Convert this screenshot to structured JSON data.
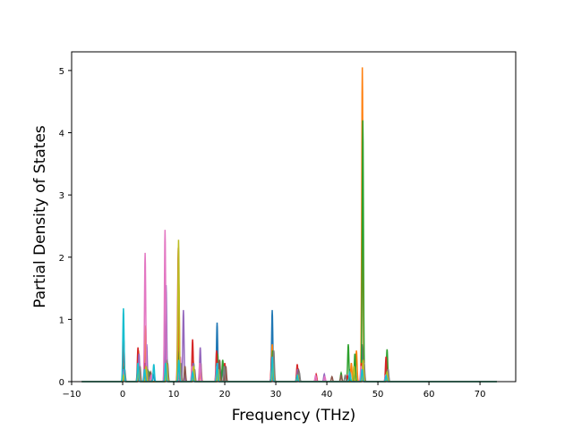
{
  "chart_data": {
    "type": "line",
    "title": "",
    "xlabel": "Frequency (THz)",
    "ylabel": "Partial Density of States",
    "xlim": [
      -10,
      77
    ],
    "ylim": [
      0,
      5.3
    ],
    "x_ticks": [
      -10,
      0,
      10,
      20,
      30,
      40,
      50,
      60,
      70
    ],
    "y_ticks": [
      0,
      1,
      2,
      3,
      4,
      5
    ],
    "x_tick_labels": [
      "−10",
      "0",
      "10",
      "20",
      "30",
      "40",
      "50",
      "60",
      "70"
    ],
    "y_tick_labels": [
      "0",
      "1",
      "2",
      "3",
      "4",
      "5"
    ],
    "grid": false,
    "legend": "none",
    "x_range": [
      -8,
      73.3
    ],
    "sigma": 0.12,
    "series": [
      {
        "color": "#1f77b4",
        "peaks": [
          [
            0.2,
            0.5
          ],
          [
            3.1,
            0.4
          ],
          [
            4.5,
            0.3
          ],
          [
            6.0,
            0.12
          ],
          [
            8.5,
            0.8
          ],
          [
            11.0,
            0.6
          ],
          [
            13.8,
            0.2
          ],
          [
            18.5,
            0.95
          ],
          [
            19.5,
            0.2
          ],
          [
            29.3,
            1.15
          ],
          [
            34.3,
            0.1
          ],
          [
            44.5,
            0.2
          ],
          [
            46.9,
            0.6
          ],
          [
            51.7,
            0.15
          ]
        ]
      },
      {
        "color": "#ff7f0e",
        "peaks": [
          [
            0.2,
            0.3
          ],
          [
            3.1,
            0.5
          ],
          [
            4.5,
            0.9
          ],
          [
            8.5,
            0.6
          ],
          [
            11.0,
            1.6
          ],
          [
            13.8,
            0.35
          ],
          [
            15.3,
            0.3
          ],
          [
            18.5,
            0.4
          ],
          [
            29.3,
            0.6
          ],
          [
            34.3,
            0.15
          ],
          [
            44.8,
            0.3
          ],
          [
            45.8,
            0.5
          ],
          [
            46.95,
            5.05
          ],
          [
            51.7,
            0.3
          ]
        ]
      },
      {
        "color": "#2ca02c",
        "peaks": [
          [
            0.3,
            0.25
          ],
          [
            3.2,
            0.3
          ],
          [
            5.2,
            0.15
          ],
          [
            8.6,
            0.4
          ],
          [
            11.1,
            0.5
          ],
          [
            13.9,
            0.3
          ],
          [
            18.6,
            0.45
          ],
          [
            19.6,
            0.35
          ],
          [
            29.4,
            0.5
          ],
          [
            34.4,
            0.2
          ],
          [
            42.8,
            0.14
          ],
          [
            44.2,
            0.6
          ],
          [
            45.5,
            0.45
          ],
          [
            47.05,
            4.2
          ],
          [
            51.8,
            0.52
          ]
        ]
      },
      {
        "color": "#d62728",
        "peaks": [
          [
            0.2,
            0.7
          ],
          [
            3.0,
            0.55
          ],
          [
            4.4,
            0.3
          ],
          [
            8.4,
            0.35
          ],
          [
            10.9,
            2.15
          ],
          [
            13.7,
            0.68
          ],
          [
            18.4,
            0.5
          ],
          [
            20.0,
            0.3
          ],
          [
            29.2,
            0.4
          ],
          [
            34.2,
            0.28
          ],
          [
            37.9,
            0.12
          ],
          [
            44.0,
            0.1
          ],
          [
            46.8,
            0.3
          ],
          [
            51.6,
            0.4
          ]
        ]
      },
      {
        "color": "#9467bd",
        "peaks": [
          [
            0.1,
            0.2
          ],
          [
            3.2,
            0.45
          ],
          [
            4.7,
            0.6
          ],
          [
            8.5,
            1.55
          ],
          [
            11.9,
            1.15
          ],
          [
            13.8,
            0.3
          ],
          [
            15.2,
            0.55
          ],
          [
            18.6,
            0.3
          ],
          [
            29.3,
            0.3
          ],
          [
            34.3,
            0.2
          ],
          [
            39.5,
            0.12
          ],
          [
            46.9,
            0.2
          ]
        ]
      },
      {
        "color": "#8c564b",
        "peaks": [
          [
            0.3,
            0.15
          ],
          [
            3.3,
            0.2
          ],
          [
            5.5,
            0.15
          ],
          [
            8.8,
            0.3
          ],
          [
            12.2,
            0.25
          ],
          [
            14.0,
            0.2
          ],
          [
            19.0,
            0.35
          ],
          [
            20.2,
            0.25
          ],
          [
            29.5,
            0.3
          ],
          [
            34.5,
            0.18
          ],
          [
            41.0,
            0.08
          ],
          [
            42.8,
            0.1
          ],
          [
            47.2,
            0.35
          ],
          [
            51.9,
            0.15
          ]
        ]
      },
      {
        "color": "#e377c2",
        "peaks": [
          [
            0.2,
            0.15
          ],
          [
            3.1,
            0.3
          ],
          [
            4.4,
            2.07
          ],
          [
            5.6,
            0.1
          ],
          [
            8.3,
            2.44
          ],
          [
            11.3,
            0.4
          ],
          [
            13.6,
            0.25
          ],
          [
            15.1,
            0.3
          ],
          [
            18.4,
            0.25
          ],
          [
            29.2,
            0.2
          ],
          [
            37.8,
            0.1
          ],
          [
            39.6,
            0.08
          ],
          [
            46.7,
            0.25
          ],
          [
            51.5,
            0.1
          ]
        ]
      },
      {
        "color": "#7f7f7f",
        "peaks": [
          [
            0.4,
            0.2
          ],
          [
            3.4,
            0.25
          ],
          [
            4.9,
            0.2
          ],
          [
            8.7,
            0.35
          ],
          [
            11.4,
            0.3
          ],
          [
            14.1,
            0.2
          ],
          [
            18.8,
            0.2
          ],
          [
            19.9,
            0.25
          ],
          [
            29.6,
            0.5
          ],
          [
            34.6,
            0.15
          ],
          [
            43.6,
            0.1
          ],
          [
            47.3,
            0.3
          ],
          [
            52.0,
            0.2
          ]
        ]
      },
      {
        "color": "#bcbd22",
        "peaks": [
          [
            0.2,
            0.1
          ],
          [
            3.1,
            0.2
          ],
          [
            4.6,
            0.25
          ],
          [
            8.6,
            0.3
          ],
          [
            10.95,
            2.28
          ],
          [
            13.9,
            0.25
          ],
          [
            18.7,
            0.2
          ],
          [
            29.4,
            0.3
          ],
          [
            34.3,
            0.1
          ],
          [
            45.3,
            0.25
          ],
          [
            47.1,
            0.35
          ],
          [
            51.8,
            0.15
          ]
        ]
      },
      {
        "color": "#17becf",
        "peaks": [
          [
            0.15,
            1.18
          ],
          [
            3.0,
            0.3
          ],
          [
            4.3,
            0.2
          ],
          [
            6.1,
            0.28
          ],
          [
            8.4,
            0.3
          ],
          [
            11.0,
            0.35
          ],
          [
            13.7,
            0.15
          ],
          [
            18.5,
            0.3
          ],
          [
            29.3,
            0.4
          ],
          [
            34.2,
            0.1
          ],
          [
            44.5,
            0.15
          ],
          [
            46.9,
            0.2
          ],
          [
            51.6,
            0.1
          ]
        ]
      }
    ]
  }
}
